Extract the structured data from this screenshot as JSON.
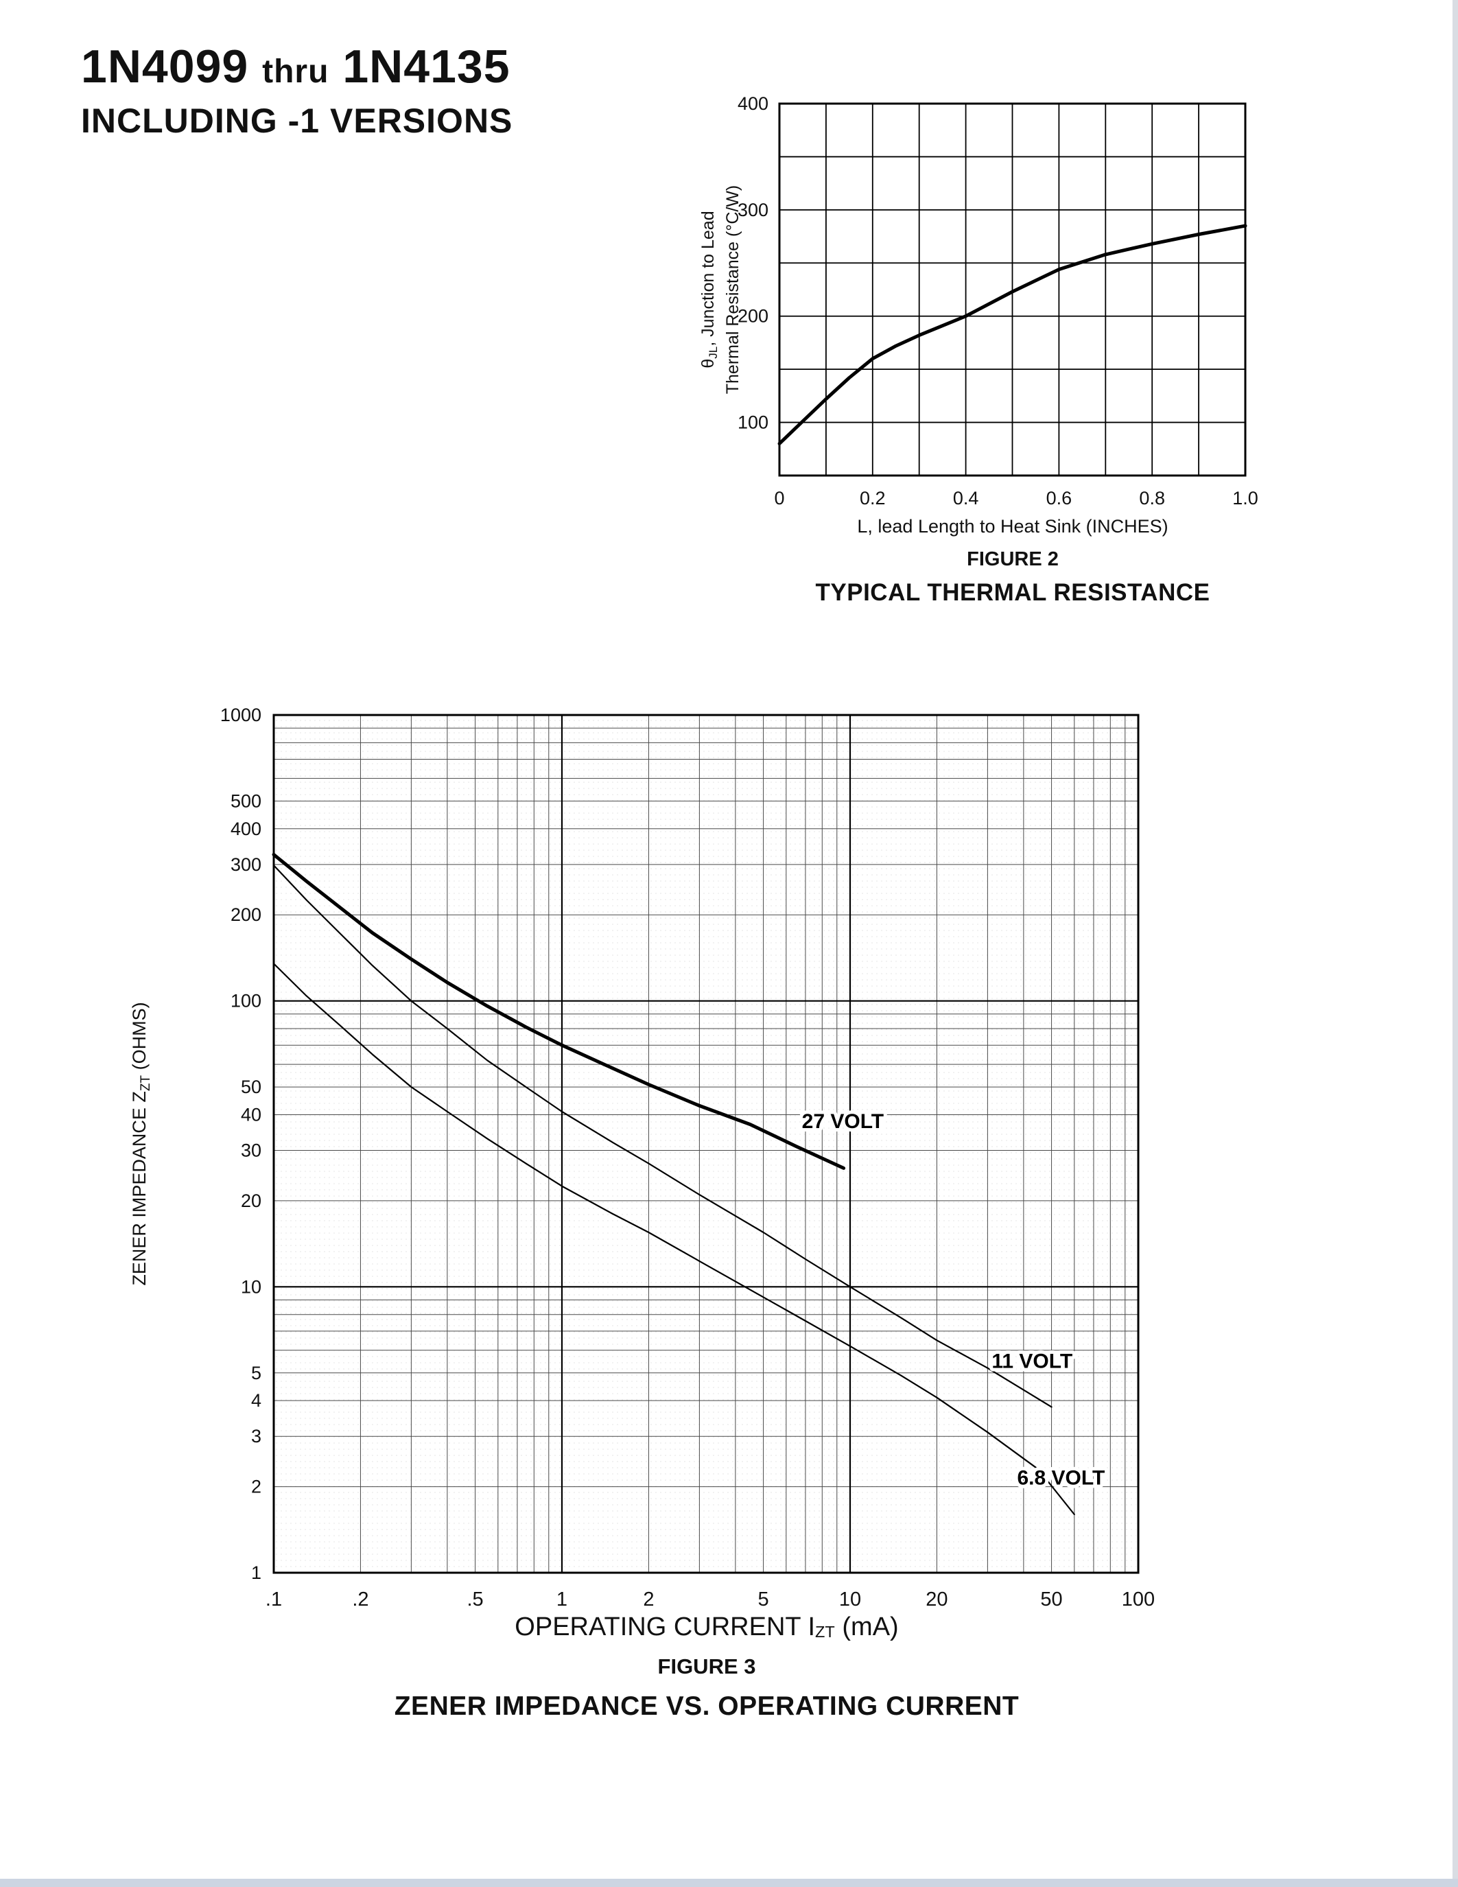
{
  "page": {
    "title": {
      "part_start": "1N4099",
      "thru": "thru",
      "part_end": "1N4135",
      "subtitle": "INCLUDING -1 VERSIONS"
    }
  },
  "chart_data": [
    {
      "id": "typical-thermal-resistance",
      "type": "line",
      "figure_label": "FIGURE 2",
      "title": "TYPICAL THERMAL RESISTANCE",
      "xlabel": "L, lead Length to Heat Sink (INCHES)",
      "ylabel_lines": [
        {
          "pre": "θ",
          "sub": "JL",
          "post": ", Junction to Lead"
        },
        {
          "pre": "Thermal Resistance (°C/W)",
          "sub": "",
          "post": ""
        }
      ],
      "x_scale": "linear",
      "y_scale": "linear",
      "xlim": [
        0,
        1.0
      ],
      "ylim": [
        50,
        400
      ],
      "grid": true,
      "x_grid": [
        0,
        0.1,
        0.2,
        0.3,
        0.4,
        0.5,
        0.6,
        0.7,
        0.8,
        0.9,
        1.0
      ],
      "y_grid": [
        50,
        100,
        150,
        200,
        250,
        300,
        350,
        400
      ],
      "x_ticks": [
        {
          "v": 0,
          "label": "0"
        },
        {
          "v": 0.2,
          "label": "0.2"
        },
        {
          "v": 0.4,
          "label": "0.4"
        },
        {
          "v": 0.6,
          "label": "0.6"
        },
        {
          "v": 0.8,
          "label": "0.8"
        },
        {
          "v": 1.0,
          "label": "1.0"
        }
      ],
      "y_ticks": [
        {
          "v": 100,
          "label": "100"
        },
        {
          "v": 200,
          "label": "200"
        },
        {
          "v": 300,
          "label": "300"
        },
        {
          "v": 400,
          "label": "400"
        }
      ],
      "series": [
        {
          "name": "junction-to-lead-thermal-resistance",
          "stroke_width": 5,
          "x": [
            0,
            0.05,
            0.1,
            0.15,
            0.2,
            0.25,
            0.3,
            0.35,
            0.4,
            0.5,
            0.6,
            0.7,
            0.8,
            0.9,
            1.0
          ],
          "y": [
            80,
            101,
            122,
            142,
            160,
            172,
            182,
            191,
            200,
            223,
            244,
            258,
            268,
            277,
            285
          ]
        }
      ]
    },
    {
      "id": "zener-impedance-vs-operating-current",
      "type": "line",
      "figure_label": "FIGURE 3",
      "title": "ZENER IMPEDANCE VS. OPERATING CURRENT",
      "xlabel_parts": {
        "pre": "OPERATING CURRENT I",
        "sub": "ZT",
        "post": " (mA)"
      },
      "ylabel_parts": {
        "pre": "ZENER IMPEDANCE Z",
        "sub": "ZT",
        "post": " (OHMS)"
      },
      "x_scale": "log",
      "y_scale": "log",
      "xlim": [
        0.1,
        100
      ],
      "ylim": [
        1,
        1000
      ],
      "grid": true,
      "x_ticks": [
        {
          "v": 0.1,
          "label": ".1"
        },
        {
          "v": 0.2,
          "label": ".2"
        },
        {
          "v": 0.5,
          "label": ".5"
        },
        {
          "v": 1,
          "label": "1"
        },
        {
          "v": 2,
          "label": "2"
        },
        {
          "v": 5,
          "label": "5"
        },
        {
          "v": 10,
          "label": "10"
        },
        {
          "v": 20,
          "label": "20"
        },
        {
          "v": 50,
          "label": "50"
        },
        {
          "v": 100,
          "label": "100"
        }
      ],
      "y_ticks": [
        {
          "v": 1000,
          "label": "1000"
        },
        {
          "v": 500,
          "label": "500"
        },
        {
          "v": 400,
          "label": "400"
        },
        {
          "v": 300,
          "label": "300"
        },
        {
          "v": 200,
          "label": "200"
        },
        {
          "v": 100,
          "label": "100"
        },
        {
          "v": 50,
          "label": "50"
        },
        {
          "v": 40,
          "label": "40"
        },
        {
          "v": 30,
          "label": "30"
        },
        {
          "v": 20,
          "label": "20"
        },
        {
          "v": 10,
          "label": "10"
        },
        {
          "v": 5,
          "label": "5"
        },
        {
          "v": 4,
          "label": "4"
        },
        {
          "v": 3,
          "label": "3"
        },
        {
          "v": 2,
          "label": "2"
        },
        {
          "v": 1,
          "label": "1"
        }
      ],
      "series": [
        {
          "name": "27 VOLT",
          "stroke_width": 5,
          "x": [
            0.1,
            0.13,
            0.17,
            0.22,
            0.3,
            0.4,
            0.55,
            0.75,
            1,
            1.4,
            2,
            3,
            4.5,
            6.5,
            9.5
          ],
          "y": [
            325,
            262,
            212,
            173,
            140,
            116,
            96,
            81,
            70,
            60,
            51,
            43,
            37,
            31,
            26
          ]
        },
        {
          "name": "11 VOLT",
          "stroke_width": 2.2,
          "x": [
            0.1,
            0.13,
            0.17,
            0.22,
            0.3,
            0.4,
            0.55,
            0.75,
            1,
            1.5,
            2,
            3,
            5,
            7,
            10,
            15,
            20,
            30,
            50
          ],
          "y": [
            298,
            225,
            172,
            133,
            100,
            80,
            62,
            50,
            41,
            32,
            27,
            21,
            15.5,
            12.5,
            10,
            7.8,
            6.5,
            5.2,
            3.8
          ]
        },
        {
          "name": "6.8 VOLT",
          "stroke_width": 2.2,
          "x": [
            0.1,
            0.13,
            0.17,
            0.22,
            0.3,
            0.4,
            0.55,
            0.75,
            1,
            1.5,
            2,
            3,
            5,
            7,
            10,
            15,
            20,
            30,
            45,
            60
          ],
          "y": [
            135,
            104,
            82,
            65,
            50,
            41,
            33,
            27,
            22.5,
            18,
            15.5,
            12.3,
            9.2,
            7.6,
            6.2,
            4.9,
            4.1,
            3.1,
            2.3,
            1.6
          ]
        }
      ],
      "annotations": [
        {
          "text": "27 VOLT",
          "x": 6.8,
          "y": 38
        },
        {
          "text": "11 VOLT",
          "x": 31,
          "y": 5.5
        },
        {
          "text": "6.8 VOLT",
          "x": 38,
          "y": 2.15
        }
      ]
    }
  ]
}
